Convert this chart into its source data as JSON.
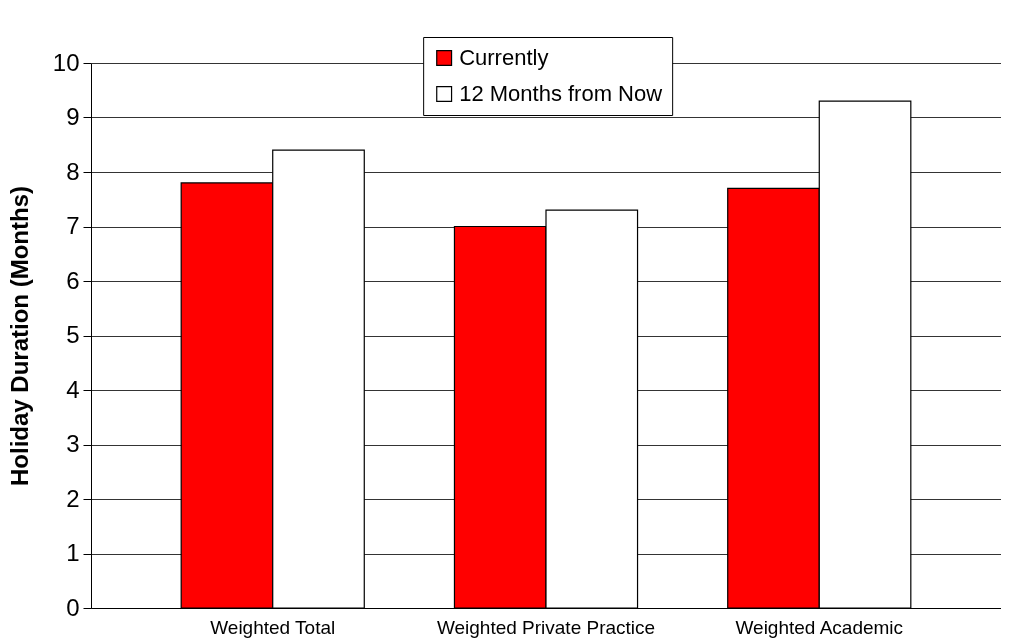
{
  "chart_data": {
    "type": "bar",
    "ylabel": "Holiday Duration (Months)",
    "categories": [
      "Weighted Total",
      "Weighted Private Practice",
      "Weighted Academic"
    ],
    "series": [
      {
        "name": "Currently",
        "color": "#ff0000",
        "values": [
          7.8,
          7.0,
          7.7
        ]
      },
      {
        "name": "12 Months from Now",
        "color": "#ffffff",
        "values": [
          8.4,
          7.3,
          9.3
        ]
      }
    ],
    "ylim": [
      0,
      10
    ],
    "yticks": [
      0,
      1,
      2,
      3,
      4,
      5,
      6,
      7,
      8,
      9,
      10
    ],
    "grid": "y",
    "legend": "top"
  }
}
